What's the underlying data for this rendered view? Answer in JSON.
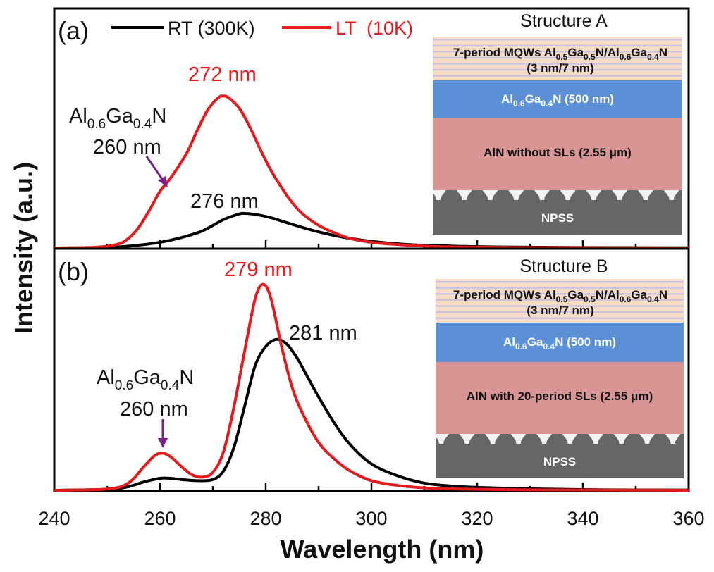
{
  "chart_data": [
    {
      "type": "line",
      "panel": "(a)",
      "xlabel": "Wavelength (nm)",
      "ylabel": "Intensity (a.u.)",
      "xlim": [
        240,
        360
      ],
      "xticks": [
        240,
        260,
        280,
        300,
        320,
        340,
        360
      ],
      "series": [
        {
          "name": "RT (300K)",
          "color": "#000000",
          "x": [
            240,
            250,
            255,
            260,
            264,
            268,
            272,
            275,
            276,
            278,
            281,
            285,
            290,
            295,
            300,
            305,
            310,
            320,
            330,
            345,
            360
          ],
          "y": [
            0.0,
            0.003,
            0.012,
            0.03,
            0.055,
            0.09,
            0.15,
            0.18,
            0.183,
            0.178,
            0.16,
            0.125,
            0.085,
            0.055,
            0.035,
            0.022,
            0.014,
            0.007,
            0.004,
            0.002,
            0.001
          ]
        },
        {
          "name": "LT  (10K)",
          "color": "#e41a1c",
          "x": [
            240,
            248,
            252,
            254,
            256,
            258,
            260,
            262,
            265,
            267,
            269,
            271,
            272,
            273,
            275,
            277,
            279,
            281,
            283,
            285,
            287,
            290,
            293,
            296,
            300,
            305,
            310,
            315,
            320,
            330,
            345,
            360
          ],
          "y": [
            0.0,
            0.004,
            0.02,
            0.05,
            0.11,
            0.2,
            0.3,
            0.37,
            0.5,
            0.62,
            0.73,
            0.795,
            0.805,
            0.795,
            0.74,
            0.64,
            0.52,
            0.41,
            0.32,
            0.24,
            0.18,
            0.12,
            0.08,
            0.05,
            0.03,
            0.018,
            0.01,
            0.006,
            0.004,
            0.002,
            0.001,
            0.0
          ]
        }
      ],
      "annotations": [
        {
          "text": "272 nm",
          "color": "#e41a1c"
        },
        {
          "text": "276 nm",
          "color": "#111111"
        }
      ]
    },
    {
      "type": "line",
      "panel": "(b)",
      "xlabel": "Wavelength (nm)",
      "ylabel": "Intensity (a.u.)",
      "xlim": [
        240,
        360
      ],
      "xticks": [
        240,
        260,
        280,
        300,
        320,
        340,
        360
      ],
      "series": [
        {
          "name": "RT (300K)",
          "color": "#000000",
          "x": [
            240,
            250,
            254,
            257,
            260,
            262,
            264,
            267,
            270,
            272,
            274,
            276,
            278,
            280,
            282,
            284,
            286,
            288,
            290,
            293,
            296,
            300,
            305,
            310,
            315,
            320,
            330,
            345,
            360
          ],
          "y": [
            0.0,
            0.004,
            0.015,
            0.035,
            0.05,
            0.05,
            0.045,
            0.04,
            0.045,
            0.08,
            0.18,
            0.35,
            0.52,
            0.6,
            0.63,
            0.61,
            0.55,
            0.47,
            0.39,
            0.28,
            0.19,
            0.11,
            0.06,
            0.03,
            0.018,
            0.012,
            0.006,
            0.002,
            0.001
          ]
        },
        {
          "name": "LT  (10K)",
          "color": "#e41a1c",
          "x": [
            240,
            250,
            254,
            257,
            259,
            260.5,
            262,
            264,
            266,
            268,
            270,
            272,
            274,
            276,
            278,
            279.5,
            281,
            283,
            285,
            287,
            290,
            293,
            296,
            300,
            305,
            310,
            315,
            320,
            330,
            345,
            360
          ],
          "y": [
            0.0,
            0.005,
            0.03,
            0.1,
            0.145,
            0.155,
            0.14,
            0.1,
            0.065,
            0.055,
            0.075,
            0.16,
            0.35,
            0.58,
            0.8,
            0.86,
            0.8,
            0.6,
            0.43,
            0.32,
            0.2,
            0.13,
            0.08,
            0.04,
            0.02,
            0.01,
            0.006,
            0.004,
            0.002,
            0.001,
            0.0
          ]
        }
      ],
      "annotations": [
        {
          "text": "279 nm",
          "color": "#e41a1c"
        },
        {
          "text": "281 nm",
          "color": "#111111"
        }
      ]
    }
  ],
  "figure": {
    "xlabel": "Wavelength (nm)",
    "ylabel": "Intensity (a.u.)",
    "xticks": [
      "240",
      "260",
      "280",
      "300",
      "320",
      "340",
      "360"
    ]
  },
  "legend": {
    "rt_label": "RT (300K)",
    "lt_label": "LT  (10K)",
    "rt_color": "#000000",
    "lt_color": "#e41a1c"
  },
  "panel_a": {
    "tag": "(a)",
    "peak_lt": "272 nm",
    "peak_rt": "276 nm",
    "shoulder_comp_main": "Al",
    "shoulder_comp_sub1": "0.6",
    "shoulder_comp_mid": "Ga",
    "shoulder_comp_sub2": "0.4",
    "shoulder_comp_end": "N",
    "shoulder_wavelength": "260 nm",
    "structure": {
      "title": "Structure A",
      "mqw_line1_a": "7-period MQWs Al",
      "mqw_line1_s1": "0.5",
      "mqw_line1_b": "Ga",
      "mqw_line1_s2": "0.5",
      "mqw_line1_c": "N/Al",
      "mqw_line1_s3": "0.6",
      "mqw_line1_d": "Ga",
      "mqw_line1_s4": "0.4",
      "mqw_line1_e": "N",
      "mqw_line2": "(3 nm/7 nm)",
      "algan_a": "Al",
      "algan_s1": "0.6",
      "algan_b": "Ga",
      "algan_s2": "0.4",
      "algan_c": "N (500 nm)",
      "aln_label": "AlN without SLs (2.55 μm)",
      "substrate_label": "NPSS"
    }
  },
  "panel_b": {
    "tag": "(b)",
    "peak_lt": "279 nm",
    "peak_rt": "281 nm",
    "shoulder_comp_main": "Al",
    "shoulder_comp_sub1": "0.6",
    "shoulder_comp_mid": "Ga",
    "shoulder_comp_sub2": "0.4",
    "shoulder_comp_end": "N",
    "shoulder_wavelength": "260 nm",
    "structure": {
      "title": "Structure B",
      "mqw_line1_a": "7-period MQWs Al",
      "mqw_line1_s1": "0.5",
      "mqw_line1_b": "Ga",
      "mqw_line1_s2": "0.5",
      "mqw_line1_c": "N/Al",
      "mqw_line1_s3": "0.6",
      "mqw_line1_d": "Ga",
      "mqw_line1_s4": "0.4",
      "mqw_line1_e": "N",
      "mqw_line2": "(3 nm/7 nm)",
      "algan_a": "Al",
      "algan_s1": "0.6",
      "algan_b": "Ga",
      "algan_s2": "0.4",
      "algan_c": "N (500 nm)",
      "aln_label": "AlN with 20-period SLs (2.55 μm)",
      "substrate_label": "NPSS"
    }
  },
  "colors": {
    "mqw_bg": "#f6dcc5",
    "mqw_stripe": "#c8c2e6",
    "algan": "#5b8fd6",
    "aln": "#d99594",
    "substrate": "#666666",
    "arrow": "#7a1f8c"
  }
}
